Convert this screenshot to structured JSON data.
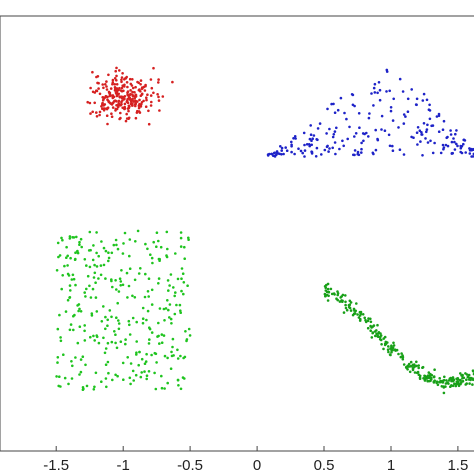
{
  "chart_data": {
    "type": "scatter",
    "title": "",
    "xlabel": "",
    "ylabel": "",
    "xlim": [
      -1.92,
      1.62
    ],
    "ylim": [
      -1.58,
      1.64
    ],
    "xticks": [
      {
        "value": -1.5,
        "label": "-1.5"
      },
      {
        "value": -1.0,
        "label": "-1"
      },
      {
        "value": -0.5,
        "label": "-0.5"
      },
      {
        "value": 0.0,
        "label": "0"
      },
      {
        "value": 0.5,
        "label": "0.5"
      },
      {
        "value": 1.0,
        "label": "1"
      },
      {
        "value": 1.5,
        "label": "1.5"
      }
    ],
    "grid": false,
    "legend": "none",
    "series": [
      {
        "color": "#d62020",
        "shape": "gaussian-blob",
        "count": 260,
        "x_range": [
          -1.6,
          -0.5
        ],
        "y_range": [
          0.64,
          1.44
        ],
        "center": [
          -1.0,
          1.05
        ]
      },
      {
        "color": "#1e23c8",
        "shape": "triangle-peak",
        "count": 230,
        "x_range": [
          0.08,
          1.62
        ],
        "y_range": [
          0.6,
          1.36
        ],
        "peak": [
          1.0,
          1.35
        ]
      },
      {
        "color": "#1fc41f",
        "shape": "uniform-rectangle",
        "count": 340,
        "x_range": [
          -1.5,
          -0.5
        ],
        "y_range": [
          -1.13,
          0.05
        ]
      },
      {
        "color": "#18a018",
        "shape": "sine-wave",
        "count": 260,
        "x_range": [
          0.5,
          1.62
        ],
        "y_range": [
          -1.15,
          -0.3
        ]
      }
    ]
  }
}
